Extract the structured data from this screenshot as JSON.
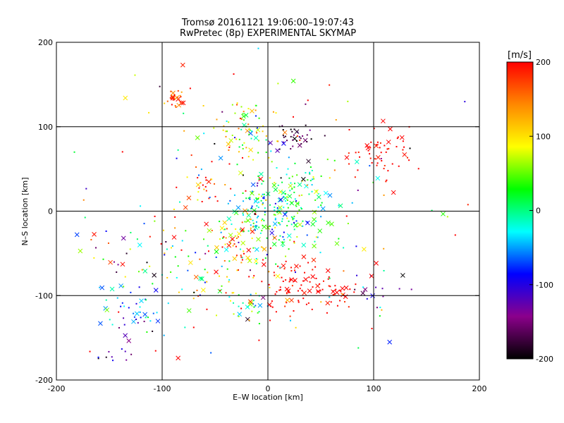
{
  "chart_data": {
    "type": "scatter",
    "title": "Tromsø 20161121 19:06:00–19:07:43",
    "subtitle": "RwPretec (8p) EXPERIMENTAL SKYMAP",
    "xlabel": "E–W location [km]",
    "ylabel": "N–S location [km]",
    "xlim": [
      -200,
      200
    ],
    "ylim": [
      -200,
      200
    ],
    "xticks": [
      -200,
      -100,
      0,
      100,
      200
    ],
    "yticks": [
      -200,
      -100,
      0,
      100,
      200
    ],
    "grid": true,
    "colorbar": {
      "label": "[m/s]",
      "range": [
        -200,
        200
      ],
      "ticks": [
        200,
        100,
        0,
        -100,
        -200
      ],
      "colors": [
        "#000000",
        "#8b008b",
        "#0000ff",
        "#00ffff",
        "#00ff00",
        "#ffff00",
        "#ff8800",
        "#ff0000"
      ]
    },
    "marker_legend": {
      "cross": "x",
      "dot": "+"
    },
    "clusters": [
      {
        "x": -88,
        "y": 133,
        "spread": 6,
        "n": 26,
        "v": 180,
        "vs": 25
      },
      {
        "x": -20,
        "y": 100,
        "spread": 18,
        "n": 70,
        "v": 70,
        "vs": 60
      },
      {
        "x": 25,
        "y": 88,
        "spread": 10,
        "n": 34,
        "v": -170,
        "vs": 25
      },
      {
        "x": 110,
        "y": 68,
        "spread": 18,
        "n": 55,
        "v": 200,
        "vs": 10
      },
      {
        "x": 20,
        "y": 15,
        "spread": 22,
        "n": 110,
        "v": 10,
        "vs": 40
      },
      {
        "x": 0,
        "y": -10,
        "spread": 22,
        "n": 140,
        "v": 0,
        "vs": 50
      },
      {
        "x": -60,
        "y": 25,
        "spread": 10,
        "n": 22,
        "v": 180,
        "vs": 40
      },
      {
        "x": -25,
        "y": -40,
        "spread": 18,
        "n": 55,
        "v": 150,
        "vs": 60
      },
      {
        "x": 30,
        "y": -85,
        "spread": 18,
        "n": 80,
        "v": 200,
        "vs": 10
      },
      {
        "x": 65,
        "y": -95,
        "spread": 10,
        "n": 25,
        "v": 200,
        "vs": 10
      },
      {
        "x": -55,
        "y": -80,
        "spread": 20,
        "n": 45,
        "v": 40,
        "vs": 110
      },
      {
        "x": -15,
        "y": -115,
        "spread": 10,
        "n": 25,
        "v": 20,
        "vs": 40
      },
      {
        "x": -130,
        "y": -120,
        "spread": 15,
        "n": 40,
        "v": -60,
        "vs": 50
      },
      {
        "x": -140,
        "y": -170,
        "spread": 10,
        "n": 12,
        "v": -130,
        "vs": 30
      },
      {
        "x": 100,
        "y": -95,
        "spread": 12,
        "n": 14,
        "v": -120,
        "vs": 60
      },
      {
        "x": -120,
        "y": -50,
        "spread": 30,
        "n": 40,
        "v": 0,
        "vs": 120
      },
      {
        "x": 0,
        "y": 0,
        "spread": 170,
        "n": 190,
        "v": 60,
        "vs": 150
      }
    ]
  }
}
